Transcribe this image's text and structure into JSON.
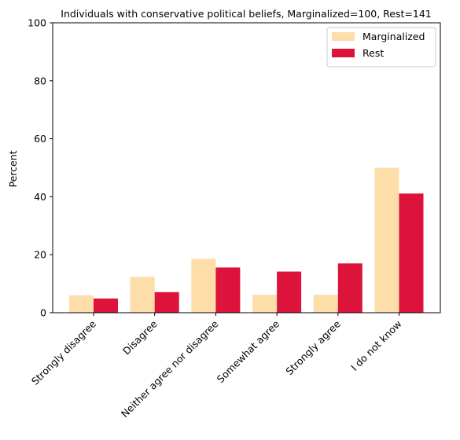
{
  "chart_data": {
    "type": "bar",
    "title": "Individuals with conservative political beliefs, Marginalized=100, Rest=141",
    "xlabel": "",
    "ylabel": "Percent",
    "ylim": [
      0,
      100
    ],
    "yticks": [
      0,
      20,
      40,
      60,
      80,
      100
    ],
    "categories": [
      "Strongly disagree",
      "Disagree",
      "Neither agree nor disagree",
      "Somewhat agree",
      "Strongly agree",
      "I do not know"
    ],
    "series": [
      {
        "name": "Marginalized",
        "color": "#fddeab",
        "values": [
          6.0,
          12.4,
          18.6,
          6.2,
          6.2,
          50.0
        ]
      },
      {
        "name": "Rest",
        "color": "#dc143c",
        "values": [
          4.9,
          7.1,
          15.6,
          14.2,
          17.0,
          41.1
        ]
      }
    ],
    "grid": false,
    "legend_position": "top-right"
  }
}
